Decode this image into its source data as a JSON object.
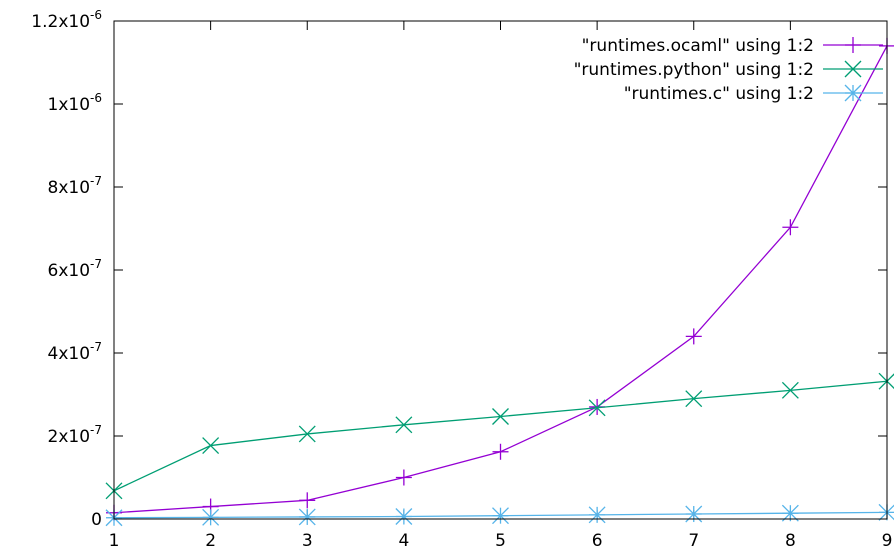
{
  "chart_data": {
    "type": "line",
    "title": "",
    "xlabel": "",
    "ylabel": "",
    "x": [
      1,
      2,
      3,
      4,
      5,
      6,
      7,
      8,
      9
    ],
    "xlim": [
      1,
      9
    ],
    "ylim": [
      0,
      1.2e-06
    ],
    "x_ticks": [
      "1",
      "2",
      "3",
      "4",
      "5",
      "6",
      "7",
      "8",
      "9"
    ],
    "y_ticks": [
      {
        "value": 0,
        "mantissa": "0",
        "exponent": ""
      },
      {
        "value": 2e-07,
        "mantissa": "2x10",
        "exponent": "-7"
      },
      {
        "value": 4e-07,
        "mantissa": "4x10",
        "exponent": "-7"
      },
      {
        "value": 6e-07,
        "mantissa": "6x10",
        "exponent": "-7"
      },
      {
        "value": 8e-07,
        "mantissa": "8x10",
        "exponent": "-7"
      },
      {
        "value": 1e-06,
        "mantissa": "1x10",
        "exponent": "-6"
      },
      {
        "value": 1.2e-06,
        "mantissa": "1.2x10",
        "exponent": "-6"
      }
    ],
    "grid": false,
    "legend_position": "top-right",
    "series": [
      {
        "name": "\"runtimes.ocaml\" using 1:2",
        "color": "#9400d3",
        "marker": "plus",
        "values": [
          1.5e-08,
          3e-08,
          4.5e-08,
          1e-07,
          1.62e-07,
          2.7e-07,
          4.4e-07,
          7.03e-07,
          1.14e-06
        ]
      },
      {
        "name": "\"runtimes.python\" using 1:2",
        "color": "#009e73",
        "marker": "cross",
        "values": [
          6.8e-08,
          1.77e-07,
          2.05e-07,
          2.27e-07,
          2.47e-07,
          2.68e-07,
          2.9e-07,
          3.1e-07,
          3.32e-07
        ]
      },
      {
        "name": "\"runtimes.c\" using 1:2",
        "color": "#56b4e9",
        "marker": "star",
        "values": [
          3e-09,
          4e-09,
          5e-09,
          6e-09,
          8e-09,
          1e-08,
          1.2e-08,
          1.4e-08,
          1.6e-08
        ]
      }
    ]
  }
}
